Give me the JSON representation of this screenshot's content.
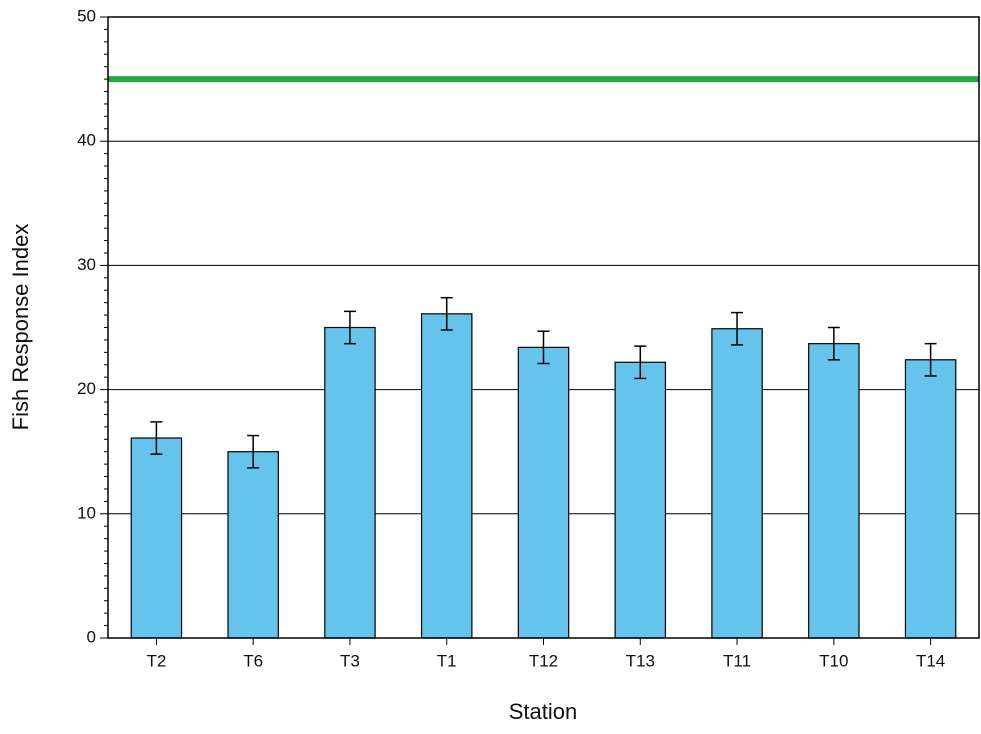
{
  "chart_data": {
    "type": "bar",
    "x_label": "Station",
    "y_label": "Fish Response Index",
    "categories": [
      "T2",
      "T6",
      "T3",
      "T1",
      "T12",
      "T13",
      "T11",
      "T10",
      "T14"
    ],
    "values": [
      16.1,
      15.0,
      25.0,
      26.1,
      23.4,
      22.2,
      24.9,
      23.7,
      22.4
    ],
    "errors": [
      1.3,
      1.3,
      1.3,
      1.3,
      1.3,
      1.3,
      1.3,
      1.3,
      1.3
    ],
    "color": "#66c4ec",
    "reference_line": {
      "value": 45,
      "color": "#22aa44"
    },
    "ylim": [
      0,
      50
    ],
    "yticks": [
      0,
      10,
      20,
      30,
      40,
      50
    ],
    "yminorticks": [
      1,
      2,
      3,
      4,
      5,
      6,
      7,
      8,
      9,
      11,
      12,
      13,
      14,
      15,
      16,
      17,
      18,
      19,
      21,
      22,
      23,
      24,
      25,
      26,
      27,
      28,
      29,
      31,
      32,
      33,
      34,
      35,
      36,
      37,
      38,
      39,
      41,
      42,
      43,
      44,
      45,
      46,
      47,
      48,
      49
    ],
    "grid": true
  }
}
